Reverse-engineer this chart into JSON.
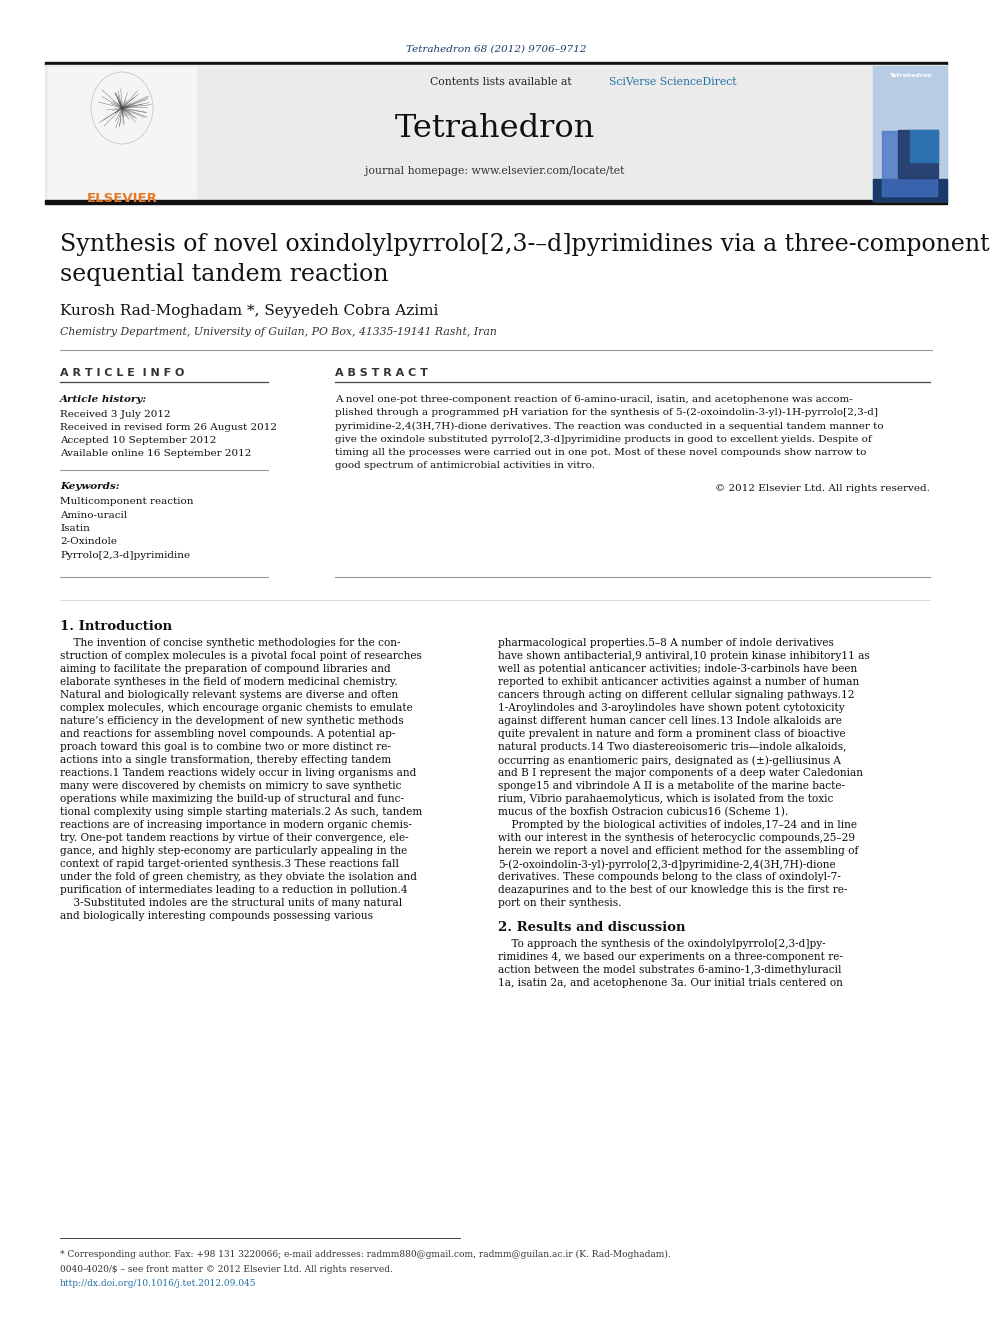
{
  "journal_ref": "Tetrahedron 68 (2012) 9706–9712",
  "journal_name": "Tetrahedron",
  "contents_line_prefix": "Contents lists available at ",
  "contents_line_link": "SciVerse ScienceDirect",
  "homepage_line": "journal homepage: www.elsevier.com/locate/tet",
  "authors": "Kurosh Rad-Moghadam *, Seyyedeh Cobra Azimi",
  "affiliation": "Chemistry Department, University of Guilan, PO Box, 41335-19141 Rasht, Iran",
  "article_info_header": "A R T I C L E  I N F O",
  "abstract_header": "A B S T R A C T",
  "article_history_label": "Article history:",
  "received": "Received 3 July 2012",
  "received_revised": "Received in revised form 26 August 2012",
  "accepted": "Accepted 10 September 2012",
  "available": "Available online 16 September 2012",
  "keywords_label": "Keywords:",
  "keywords": [
    "Multicomponent reaction",
    "Amino-uracil",
    "Isatin",
    "2-Oxindole",
    "Pyrrolo[2,3-d]pyrimidine"
  ],
  "abstract_lines": [
    "A novel one-pot three-component reaction of 6-amino-uracil, isatin, and acetophenone was accom-",
    "plished through a programmed pH variation for the synthesis of 5-(2-oxoindolin-3-yl)-1H-pyrrolo[2,3-d]",
    "pyrimidine-2,4(3H,7H)-dione derivatives. The reaction was conducted in a sequential tandem manner to",
    "give the oxindole substituted pyrrolo[2,3-d]pyrimidine products in good to excellent yields. Despite of",
    "timing all the processes were carried out in one pot. Most of these novel compounds show narrow to",
    "good spectrum of antimicrobial activities in vitro."
  ],
  "copyright": "© 2012 Elsevier Ltd. All rights reserved.",
  "intro_header": "1. Introduction",
  "intro_col1_lines": [
    "    The invention of concise synthetic methodologies for the con-",
    "struction of complex molecules is a pivotal focal point of researches",
    "aiming to facilitate the preparation of compound libraries and",
    "elaborate syntheses in the field of modern medicinal chemistry.",
    "Natural and biologically relevant systems are diverse and often",
    "complex molecules, which encourage organic chemists to emulate",
    "nature’s efficiency in the development of new synthetic methods",
    "and reactions for assembling novel compounds. A potential ap-",
    "proach toward this goal is to combine two or more distinct re-",
    "actions into a single transformation, thereby effecting tandem",
    "reactions.1 Tandem reactions widely occur in living organisms and",
    "many were discovered by chemists on mimicry to save synthetic",
    "operations while maximizing the build-up of structural and func-",
    "tional complexity using simple starting materials.2 As such, tandem",
    "reactions are of increasing importance in modern organic chemis-",
    "try. One-pot tandem reactions by virtue of their convergence, ele-",
    "gance, and highly step-economy are particularly appealing in the",
    "context of rapid target-oriented synthesis.3 These reactions fall",
    "under the fold of green chemistry, as they obviate the isolation and",
    "purification of intermediates leading to a reduction in pollution.4",
    "    3-Substituted indoles are the structural units of many natural",
    "and biologically interesting compounds possessing various"
  ],
  "intro_col2_lines": [
    "pharmacological properties.5–8 A number of indole derivatives",
    "have shown antibacterial,9 antiviral,10 protein kinase inhibitory11 as",
    "well as potential anticancer activities; indole-3-carbinols have been",
    "reported to exhibit anticancer activities against a number of human",
    "cancers through acting on different cellular signaling pathways.12",
    "1-Aroylindoles and 3-aroylindoles have shown potent cytotoxicity",
    "against different human cancer cell lines.13 Indole alkaloids are",
    "quite prevalent in nature and form a prominent class of bioactive",
    "natural products.14 Two diastereoisomeric tris—indole alkaloids,",
    "occurring as enantiomeric pairs, designated as (±)-gelliusinus A",
    "and B I represent the major components of a deep water Caledonian",
    "sponge15 and vibrindole A II is a metabolite of the marine bacte-",
    "rium, Vibrio parahaemolyticus, which is isolated from the toxic",
    "mucus of the boxfish Ostracion cubicus16 (Scheme 1).",
    "    Prompted by the biological activities of indoles,17–24 and in line",
    "with our interest in the synthesis of heterocyclic compounds,25–29",
    "herein we report a novel and efficient method for the assembling of",
    "5-(2-oxoindolin-3-yl)-pyrrolo[2,3-d]pyrimidine-2,4(3H,7H)-dione",
    "derivatives. These compounds belong to the class of oxindolyl-7-",
    "deazapurines and to the best of our knowledge this is the first re-",
    "port on their synthesis."
  ],
  "section2_header": "2. Results and discussion",
  "section2_lines": [
    "    To approach the synthesis of the oxindolylpyrrolo[2,3-d]py-",
    "rimidines 4, we based our experiments on a three-component re-",
    "action between the model substrates 6-amino-1,3-dimethyluracil",
    "1a, isatin 2a, and acetophenone 3a. Our initial trials centered on"
  ],
  "footnote_star": "* Corresponding author. Fax: +98 131 3220066; e-mail addresses: radmm880@gmail.com, radmm@guilan.ac.ir (K. Rad-Moghadam).",
  "footnote_issn": "0040-4020/$ – see front matter © 2012 Elsevier Ltd. All rights reserved.",
  "footnote_doi": "http://dx.doi.org/10.1016/j.tet.2012.09.045",
  "bg_color": "#ffffff",
  "dark_bar_color": "#111111",
  "orange_color": "#e87722",
  "link_color": "#1a3a6b",
  "sciverse_color": "#2471a3"
}
